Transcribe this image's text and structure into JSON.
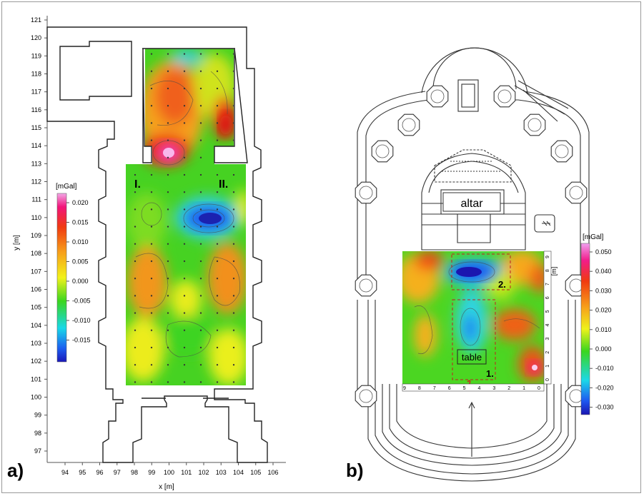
{
  "panel_a": {
    "label": "a)",
    "xlabel": "x [m]",
    "ylabel": "y [m]",
    "x_ticks": [
      "94",
      "95",
      "96",
      "97",
      "98",
      "99",
      "100",
      "101",
      "102",
      "103",
      "104",
      "105",
      "106"
    ],
    "y_ticks": [
      "97",
      "98",
      "99",
      "100",
      "101",
      "102",
      "103",
      "104",
      "105",
      "106",
      "107",
      "108",
      "109",
      "110",
      "111",
      "112",
      "113",
      "114",
      "115",
      "116",
      "117",
      "118",
      "119",
      "120",
      "121"
    ],
    "zone_labels": [
      "I.",
      "II."
    ],
    "colorbar": {
      "unit": "[mGal]",
      "ticks": [
        "0.020",
        "0.015",
        "0.010",
        "0.005",
        "0.000",
        "-0.005",
        "-0.010",
        "-0.015"
      ]
    }
  },
  "panel_b": {
    "label": "b)",
    "altar_label": "altar",
    "table_label": "table",
    "grid_x_ticks": [
      "9",
      "8",
      "7",
      "6",
      "5",
      "4",
      "3",
      "2",
      "1",
      "0"
    ],
    "grid_y_ticks": [
      "0",
      "1",
      "2",
      "3",
      "4",
      "5",
      "6",
      "7",
      "8",
      "9"
    ],
    "grid_unit": "[m]",
    "marker_labels": [
      "1.",
      "2."
    ],
    "colorbar": {
      "unit": "[mGal]",
      "ticks": [
        "0.050",
        "0.040",
        "0.030",
        "0.020",
        "0.010",
        "0.000",
        "-0.010",
        "-0.020",
        "-0.030"
      ]
    }
  }
}
